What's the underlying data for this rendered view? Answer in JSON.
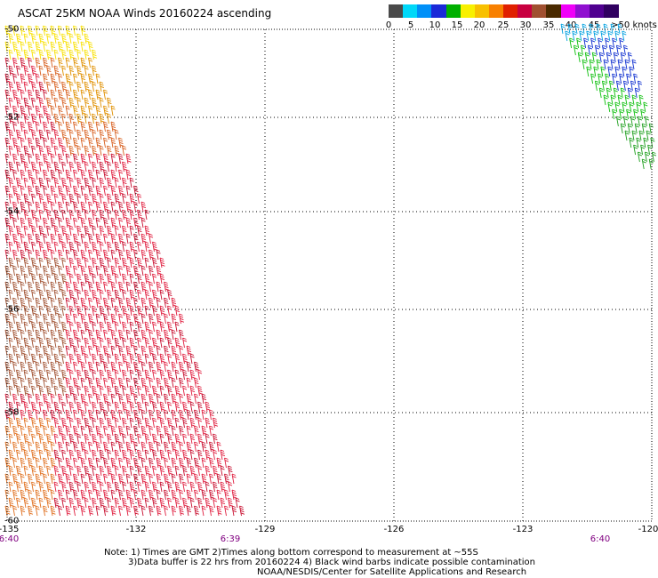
{
  "title": "ASCAT 25KM NOAA Winds 20160224 ascending",
  "scale": {
    "colors": [
      "#4a4a4a",
      "#00d8f8",
      "#0090f8",
      "#1b2ad8",
      "#00b000",
      "#f8f000",
      "#f8c000",
      "#f88000",
      "#e02000",
      "#c80040",
      "#a05030",
      "#4a2a00",
      "#f000f8",
      "#9010d0",
      "#500090",
      "#300060"
    ],
    "labels": [
      "0",
      "5",
      "10",
      "15",
      "20",
      "25",
      "30",
      "35",
      "40",
      "45",
      ">50 knots"
    ]
  },
  "axes": {
    "lon_labels": [
      "-135",
      "-132",
      "-129",
      "-126",
      "-123",
      "-120"
    ],
    "lat_labels": [
      "-50",
      "-52",
      "-54",
      "-56",
      "-58",
      "-60"
    ]
  },
  "times": [
    "6:40",
    "6:39",
    "6:40"
  ],
  "notes": {
    "line1": "Note: 1) Times are GMT 2)Times along bottom correspond to measurement at ~55S",
    "line2": "3)Data buffer is 22 hrs from 20160224 4) Black wind barbs indicate possible contamination",
    "line3": "NOAA/NESDIS/Center for Satellite Applications and Research"
  },
  "swaths": [
    {
      "name": "western swath",
      "colors": [
        "#f8e000",
        "#e09000",
        "#d86020",
        "#e02040",
        "#c81030",
        "#a05030",
        "#e07020"
      ]
    },
    {
      "name": "eastern swath",
      "colors": [
        "#00a0e0",
        "#1030d0",
        "#10c010",
        "#20a020"
      ]
    }
  ]
}
